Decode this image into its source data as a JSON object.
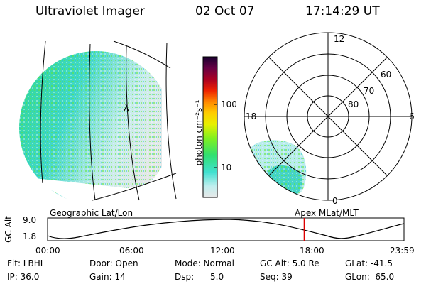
{
  "header": {
    "title": "Ultraviolet Imager",
    "date": "02 Oct 07",
    "time": "17:14:29 UT"
  },
  "colorbar": {
    "unit_label": "photon cm⁻²s⁻¹",
    "ticks": [
      "100",
      "10"
    ]
  },
  "geo_panel": {
    "label": "Geographic Lat/Lon",
    "marker": "λ"
  },
  "polar_panel": {
    "label": "Apex MLat/MLT",
    "mlt_labels": {
      "top": "12",
      "left": "18",
      "right": "6",
      "bottom": "0"
    },
    "lat_labels": [
      "60",
      "70",
      "80"
    ]
  },
  "altitude_plot": {
    "ylabel": "GC Alt",
    "y_ticks": [
      "9.0",
      "1.8"
    ],
    "x_ticks": [
      "00:00",
      "06:00",
      "12:00",
      "18:00",
      "23:59"
    ],
    "current_time_fraction": 0.72
  },
  "status": {
    "flt": "Flt: LBHL",
    "ip": "IP: 36.0",
    "door": "Door: Open",
    "gain": "Gain: 14",
    "mode": "Mode: Normal",
    "dsp": "Dsp:      5.0",
    "gcalt": "GC Alt: 5.0 Re",
    "seq": "Seq: 39",
    "glat": "GLat: -41.5",
    "glon": "GLon:  65.0"
  },
  "colors": {
    "marker": "#dd0000",
    "grid": "#000000"
  }
}
